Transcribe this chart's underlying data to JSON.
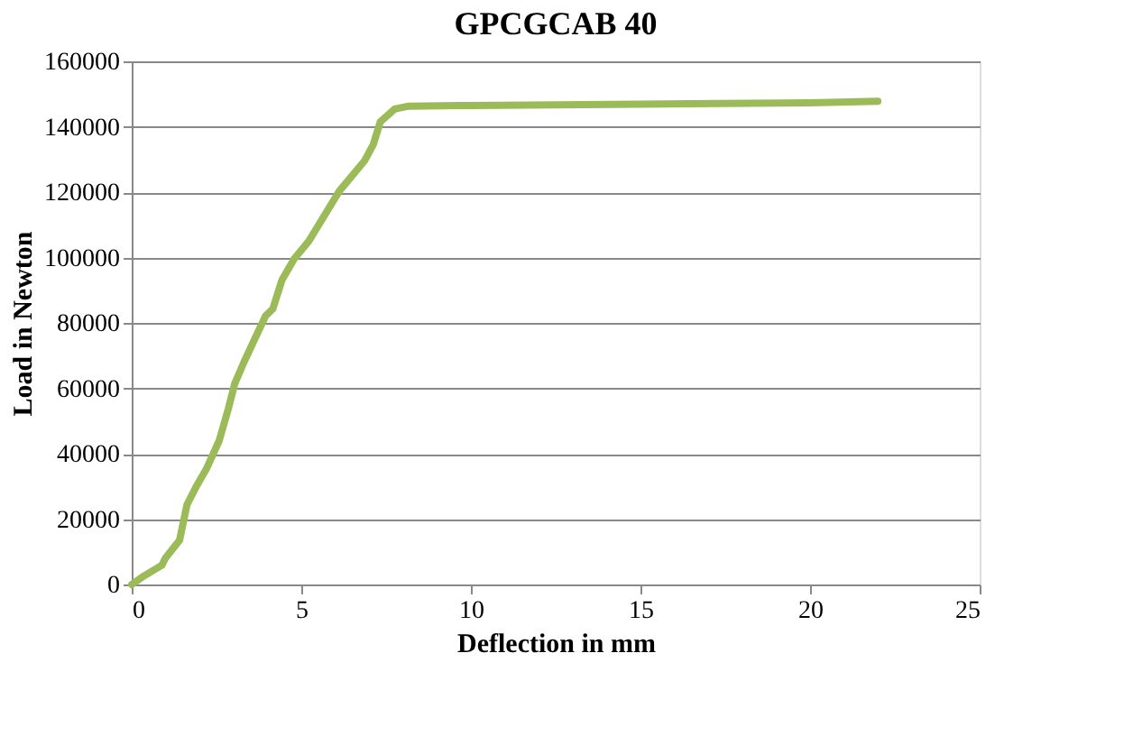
{
  "chart_data": {
    "type": "line",
    "title": "GPCGCAB 40",
    "xlabel": "Deflection in mm",
    "ylabel": "Load in Newton",
    "series": [
      {
        "color": "#9bbb59",
        "x": [
          0,
          0.36,
          0.89,
          0.99,
          1.41,
          1.63,
          1.9,
          2.2,
          2.58,
          2.85,
          3.04,
          3.31,
          3.7,
          3.95,
          4.16,
          4.43,
          4.79,
          5.22,
          6.12,
          6.86,
          7.12,
          7.33,
          7.75,
          8.17,
          10,
          15,
          20,
          22
        ],
        "values": [
          0,
          2600,
          5900,
          8000,
          13500,
          24400,
          29900,
          35300,
          44000,
          53800,
          61500,
          68000,
          76700,
          82200,
          84300,
          93100,
          99600,
          105000,
          120300,
          129500,
          134500,
          141500,
          145400,
          146300,
          146500,
          146900,
          147300,
          147800
        ]
      }
    ],
    "xlim": [
      0,
      25
    ],
    "xticks": [
      0,
      5,
      10,
      15,
      20,
      25
    ],
    "ylim": [
      0,
      160000
    ],
    "yticks": [
      0,
      20000,
      40000,
      60000,
      80000,
      100000,
      120000,
      140000,
      160000
    ],
    "grid": "y",
    "marker": "none",
    "line_style": "solid"
  }
}
